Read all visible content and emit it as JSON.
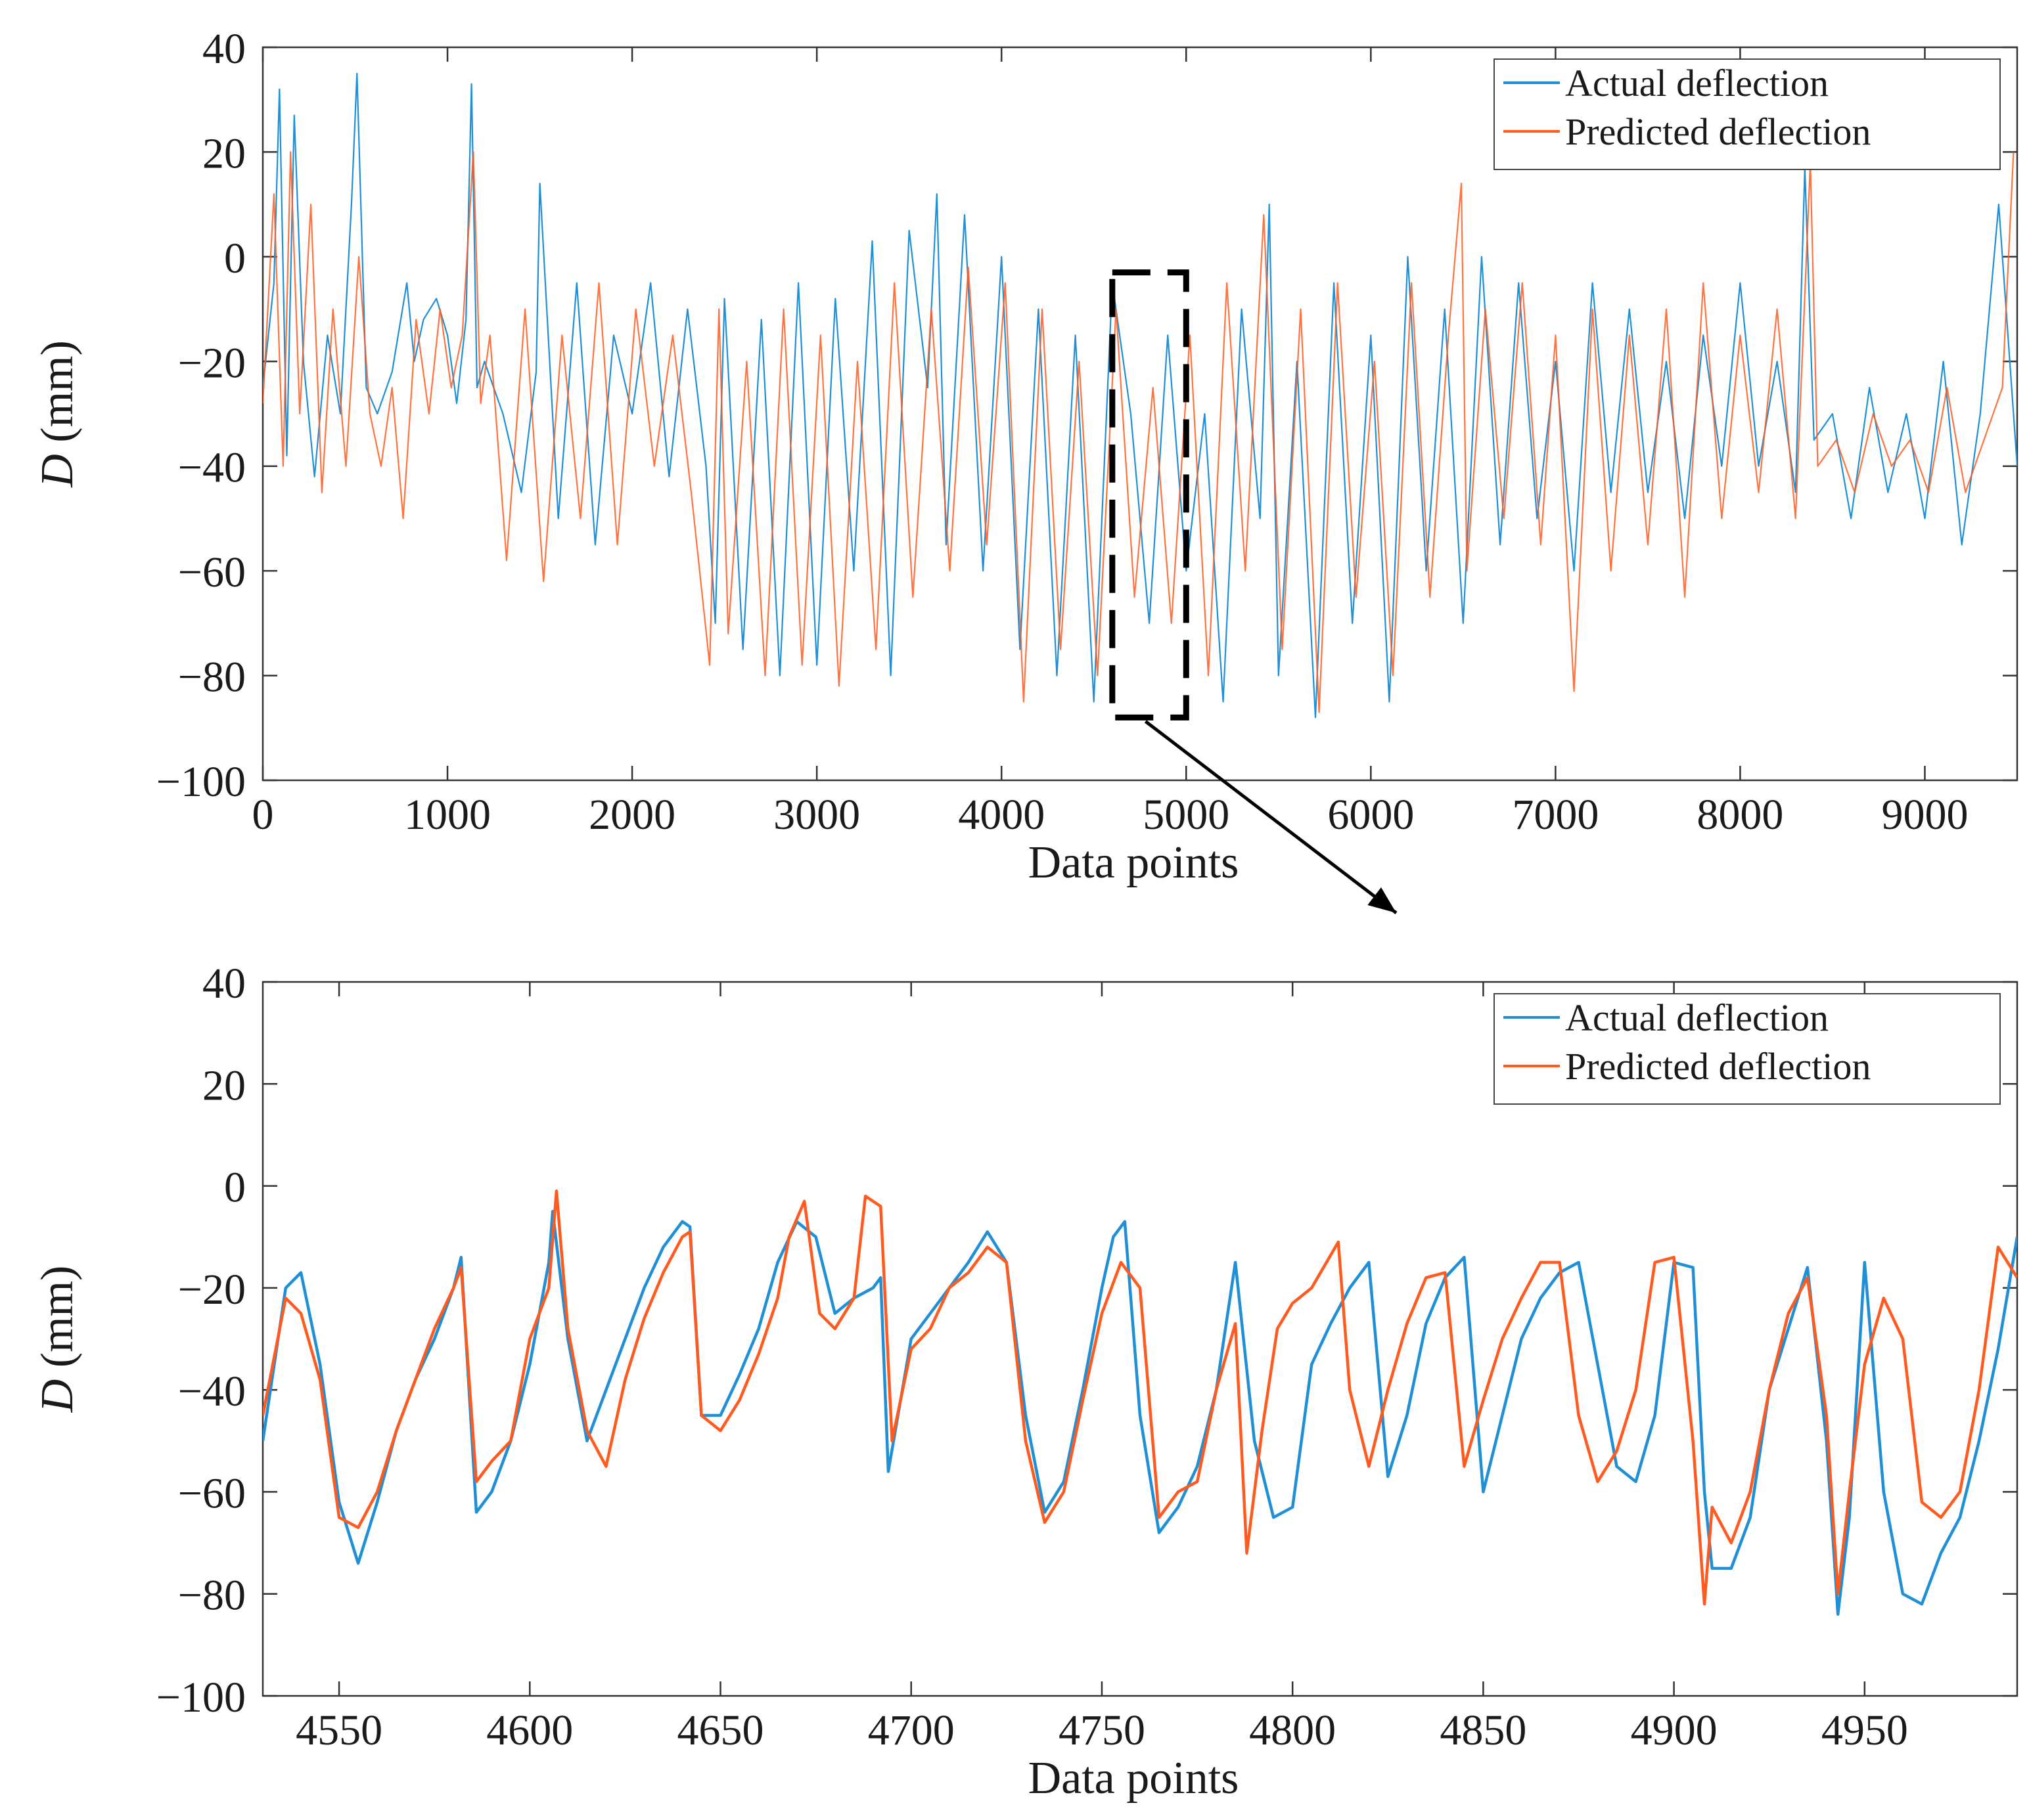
{
  "colors": {
    "actual": "#1f8fd6",
    "predicted": "#ff5a1f",
    "axis": "#333333",
    "zoom_box": "#000000"
  },
  "chart_data": [
    {
      "type": "line",
      "id": "overview",
      "title": "",
      "xlabel": "Data points",
      "ylabel_italic": "D",
      "ylabel_unit": " (mm)",
      "xlim": [
        0,
        9500
      ],
      "ylim": [
        -100,
        40
      ],
      "xticks": [
        "0",
        "1000",
        "2000",
        "3000",
        "4000",
        "5000",
        "6000",
        "7000",
        "8000",
        "9000"
      ],
      "yticks": [
        "40",
        "20",
        "0",
        "−20",
        "−40",
        "−60",
        "−80",
        "−100"
      ],
      "legend": {
        "position": "top-right",
        "entries": [
          "Actual deflection",
          "Predicted deflection"
        ]
      },
      "zoom_region": {
        "x": [
          4600,
          5000
        ],
        "y": [
          -88,
          -3
        ]
      },
      "series": [
        {
          "name": "Actual deflection",
          "x": [
            0,
            60,
            90,
            130,
            170,
            220,
            280,
            350,
            420,
            480,
            510,
            560,
            620,
            700,
            780,
            820,
            870,
            940,
            1000,
            1050,
            1100,
            1130,
            1160,
            1200,
            1300,
            1400,
            1480,
            1500,
            1600,
            1700,
            1800,
            1900,
            2000,
            2100,
            2200,
            2300,
            2400,
            2450,
            2500,
            2600,
            2700,
            2800,
            2900,
            3000,
            3100,
            3200,
            3300,
            3400,
            3500,
            3600,
            3650,
            3700,
            3800,
            3900,
            4000,
            4100,
            4200,
            4300,
            4400,
            4500,
            4600,
            4700,
            4800,
            4900,
            5000,
            5100,
            5200,
            5300,
            5400,
            5450,
            5500,
            5600,
            5700,
            5800,
            5900,
            6000,
            6100,
            6200,
            6300,
            6400,
            6500,
            6600,
            6700,
            6800,
            6900,
            7000,
            7100,
            7200,
            7300,
            7400,
            7500,
            7600,
            7700,
            7800,
            7900,
            8000,
            8100,
            8200,
            8300,
            8350,
            8400,
            8500,
            8600,
            8700,
            8800,
            8900,
            9000,
            9100,
            9200,
            9300,
            9400,
            9500
          ],
          "y": [
            -25,
            -5,
            32,
            -38,
            27,
            -20,
            -42,
            -15,
            -30,
            10,
            35,
            -25,
            -30,
            -22,
            -5,
            -20,
            -12,
            -8,
            -15,
            -28,
            -12,
            33,
            -25,
            -20,
            -30,
            -45,
            -22,
            14,
            -50,
            -5,
            -55,
            -15,
            -30,
            -5,
            -42,
            -10,
            -40,
            -70,
            -8,
            -75,
            -12,
            -80,
            -5,
            -78,
            -8,
            -60,
            3,
            -80,
            5,
            -25,
            12,
            -55,
            8,
            -60,
            0,
            -75,
            -10,
            -80,
            -15,
            -85,
            -5,
            -30,
            -70,
            -15,
            -60,
            -30,
            -85,
            -10,
            -50,
            10,
            -80,
            -20,
            -88,
            -5,
            -70,
            -15,
            -85,
            0,
            -60,
            -10,
            -70,
            0,
            -55,
            -5,
            -50,
            -20,
            -60,
            -5,
            -45,
            -10,
            -45,
            -20,
            -50,
            -15,
            -40,
            -5,
            -40,
            -20,
            -45,
            17,
            -35,
            -30,
            -50,
            -25,
            -45,
            -30,
            -50,
            -20,
            -55,
            -30,
            10,
            -40
          ]
        },
        {
          "name": "Predicted deflection",
          "x": [
            0,
            60,
            110,
            150,
            200,
            260,
            320,
            380,
            450,
            520,
            580,
            640,
            700,
            760,
            830,
            900,
            960,
            1020,
            1080,
            1140,
            1180,
            1230,
            1320,
            1420,
            1520,
            1620,
            1720,
            1820,
            1920,
            2020,
            2120,
            2220,
            2320,
            2420,
            2470,
            2520,
            2620,
            2720,
            2820,
            2920,
            3020,
            3120,
            3220,
            3320,
            3420,
            3520,
            3620,
            3720,
            3820,
            3920,
            4020,
            4120,
            4220,
            4320,
            4420,
            4520,
            4620,
            4720,
            4820,
            4920,
            5020,
            5120,
            5220,
            5320,
            5420,
            5520,
            5620,
            5720,
            5820,
            5920,
            6020,
            6120,
            6220,
            6320,
            6420,
            6490,
            6520,
            6620,
            6720,
            6820,
            6920,
            7000,
            7100,
            7200,
            7300,
            7400,
            7500,
            7600,
            7700,
            7800,
            7900,
            8000,
            8100,
            8200,
            8300,
            8380,
            8420,
            8520,
            8620,
            8720,
            8820,
            8920,
            9020,
            9120,
            9220,
            9320,
            9420,
            9480
          ],
          "y": [
            -28,
            12,
            -40,
            20,
            -30,
            10,
            -45,
            -10,
            -40,
            0,
            -30,
            -40,
            -25,
            -50,
            -12,
            -30,
            -10,
            -25,
            -15,
            20,
            -28,
            -15,
            -58,
            -10,
            -62,
            -15,
            -50,
            -5,
            -55,
            -10,
            -40,
            -15,
            -45,
            -78,
            -10,
            -72,
            -20,
            -80,
            -10,
            -78,
            -15,
            -82,
            -20,
            -75,
            -5,
            -65,
            -10,
            -60,
            -2,
            -55,
            -5,
            -85,
            -10,
            -75,
            -20,
            -80,
            -10,
            -65,
            -25,
            -70,
            -15,
            -80,
            -5,
            -60,
            8,
            -75,
            -10,
            -87,
            -5,
            -65,
            -20,
            -80,
            -5,
            -65,
            -15,
            14,
            -60,
            -10,
            -50,
            -5,
            -55,
            -15,
            -83,
            -10,
            -60,
            -15,
            -55,
            -10,
            -65,
            -5,
            -50,
            -15,
            -45,
            -10,
            -50,
            18,
            -40,
            -35,
            -45,
            -30,
            -40,
            -35,
            -45,
            -25,
            -45,
            -35,
            -25,
            20
          ]
        }
      ]
    },
    {
      "type": "line",
      "id": "zoom",
      "title": "",
      "xlabel": "Data points",
      "ylabel_italic": "D",
      "ylabel_unit": " (mm)",
      "xlim": [
        4530,
        4990
      ],
      "ylim": [
        -100,
        40
      ],
      "xticks": [
        "4550",
        "4600",
        "4650",
        "4700",
        "4750",
        "4800",
        "4850",
        "4900",
        "4950"
      ],
      "yticks": [
        "40",
        "20",
        "0",
        "−20",
        "−40",
        "−60",
        "−80",
        "−100"
      ],
      "legend": {
        "position": "top-right",
        "entries": [
          "Actual deflection",
          "Predicted deflection"
        ]
      },
      "series": [
        {
          "name": "Actual deflection",
          "x": [
            4530,
            4536,
            4540,
            4545,
            4550,
            4555,
            4560,
            4565,
            4570,
            4575,
            4580,
            4582,
            4586,
            4590,
            4595,
            4600,
            4605,
            4606,
            4610,
            4615,
            4620,
            4625,
            4630,
            4635,
            4640,
            4642,
            4645,
            4650,
            4655,
            4660,
            4665,
            4670,
            4675,
            4680,
            4685,
            4690,
            4692,
            4694,
            4700,
            4705,
            4710,
            4715,
            4720,
            4725,
            4730,
            4735,
            4740,
            4745,
            4750,
            4753,
            4756,
            4760,
            4765,
            4770,
            4775,
            4780,
            4785,
            4790,
            4795,
            4800,
            4805,
            4810,
            4815,
            4820,
            4825,
            4830,
            4835,
            4840,
            4845,
            4850,
            4855,
            4860,
            4865,
            4870,
            4875,
            4880,
            4885,
            4890,
            4895,
            4900,
            4905,
            4908,
            4910,
            4915,
            4920,
            4925,
            4930,
            4935,
            4940,
            4943,
            4946,
            4950,
            4955,
            4960,
            4965,
            4970,
            4975,
            4980,
            4985,
            4990
          ],
          "y": [
            -50,
            -20,
            -17,
            -35,
            -62,
            -74,
            -62,
            -48,
            -38,
            -30,
            -20,
            -14,
            -64,
            -60,
            -50,
            -35,
            -15,
            -5,
            -30,
            -50,
            -40,
            -30,
            -20,
            -12,
            -7,
            -8,
            -45,
            -45,
            -37,
            -28,
            -15,
            -7,
            -10,
            -25,
            -22,
            -20,
            -18,
            -56,
            -30,
            -25,
            -20,
            -15,
            -9,
            -15,
            -45,
            -64,
            -58,
            -40,
            -20,
            -10,
            -7,
            -45,
            -68,
            -63,
            -55,
            -40,
            -15,
            -50,
            -65,
            -63,
            -35,
            -27,
            -20,
            -15,
            -57,
            -45,
            -27,
            -18,
            -14,
            -60,
            -45,
            -30,
            -22,
            -17,
            -15,
            -35,
            -55,
            -58,
            -45,
            -15,
            -16,
            -60,
            -75,
            -75,
            -65,
            -40,
            -28,
            -16,
            -50,
            -84,
            -65,
            -15,
            -60,
            -80,
            -82,
            -72,
            -65,
            -50,
            -32,
            -10
          ]
        },
        {
          "name": "Predicted deflection",
          "x": [
            4530,
            4536,
            4540,
            4545,
            4550,
            4555,
            4560,
            4565,
            4570,
            4575,
            4580,
            4582,
            4586,
            4590,
            4595,
            4600,
            4605,
            4607,
            4610,
            4615,
            4620,
            4625,
            4630,
            4635,
            4640,
            4642,
            4645,
            4650,
            4655,
            4660,
            4665,
            4668,
            4672,
            4676,
            4680,
            4685,
            4688,
            4692,
            4695,
            4700,
            4705,
            4710,
            4715,
            4720,
            4725,
            4730,
            4735,
            4740,
            4745,
            4750,
            4755,
            4760,
            4765,
            4770,
            4775,
            4780,
            4785,
            4788,
            4792,
            4796,
            4800,
            4805,
            4812,
            4815,
            4820,
            4825,
            4830,
            4835,
            4840,
            4845,
            4850,
            4855,
            4860,
            4865,
            4870,
            4875,
            4880,
            4885,
            4890,
            4895,
            4900,
            4905,
            4908,
            4910,
            4915,
            4920,
            4925,
            4930,
            4935,
            4940,
            4943,
            4946,
            4950,
            4955,
            4960,
            4965,
            4970,
            4975,
            4980,
            4985,
            4990
          ],
          "y": [
            -45,
            -22,
            -25,
            -38,
            -65,
            -67,
            -60,
            -48,
            -38,
            -28,
            -20,
            -16,
            -58,
            -54,
            -50,
            -30,
            -20,
            -1,
            -28,
            -48,
            -55,
            -38,
            -26,
            -17,
            -10,
            -9,
            -45,
            -48,
            -42,
            -33,
            -22,
            -10,
            -3,
            -25,
            -28,
            -22,
            -2,
            -4,
            -50,
            -32,
            -28,
            -20,
            -17,
            -12,
            -15,
            -50,
            -66,
            -60,
            -42,
            -25,
            -15,
            -20,
            -65,
            -60,
            -58,
            -40,
            -27,
            -72,
            -48,
            -28,
            -23,
            -20,
            -11,
            -40,
            -55,
            -40,
            -27,
            -18,
            -17,
            -55,
            -42,
            -30,
            -22,
            -15,
            -15,
            -45,
            -58,
            -52,
            -40,
            -15,
            -14,
            -50,
            -82,
            -63,
            -70,
            -60,
            -40,
            -25,
            -18,
            -45,
            -80,
            -60,
            -35,
            -22,
            -30,
            -62,
            -65,
            -60,
            -40,
            -12,
            -18
          ]
        }
      ]
    }
  ]
}
